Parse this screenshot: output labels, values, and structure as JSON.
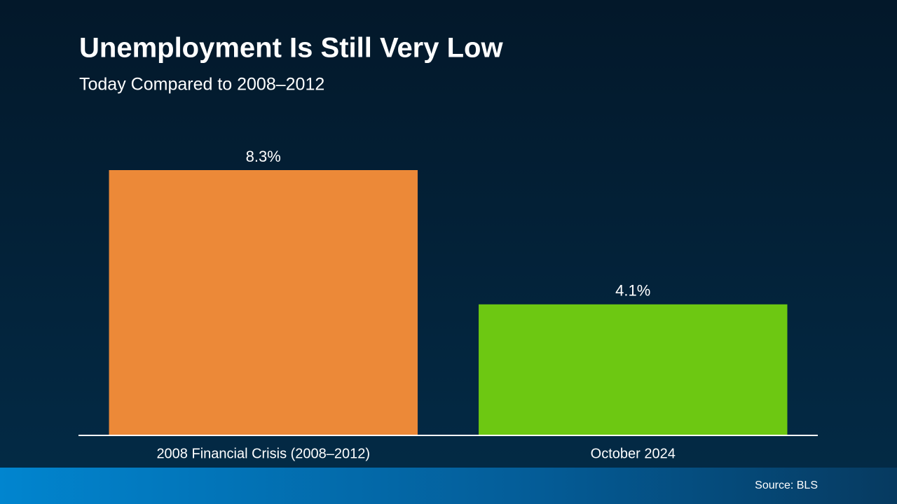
{
  "chart_data": {
    "type": "bar",
    "title": "Unemployment Is Still Very Low",
    "subtitle": "Today Compared to 2008–2012",
    "categories": [
      "2008 Financial Crisis (2008–2012)",
      "October 2024"
    ],
    "values": [
      8.3,
      4.1
    ],
    "value_labels": [
      "8.3%",
      "4.1%"
    ],
    "colors": [
      "#ec8938",
      "#6dc812"
    ],
    "grid": false,
    "source": "Source: BLS"
  }
}
